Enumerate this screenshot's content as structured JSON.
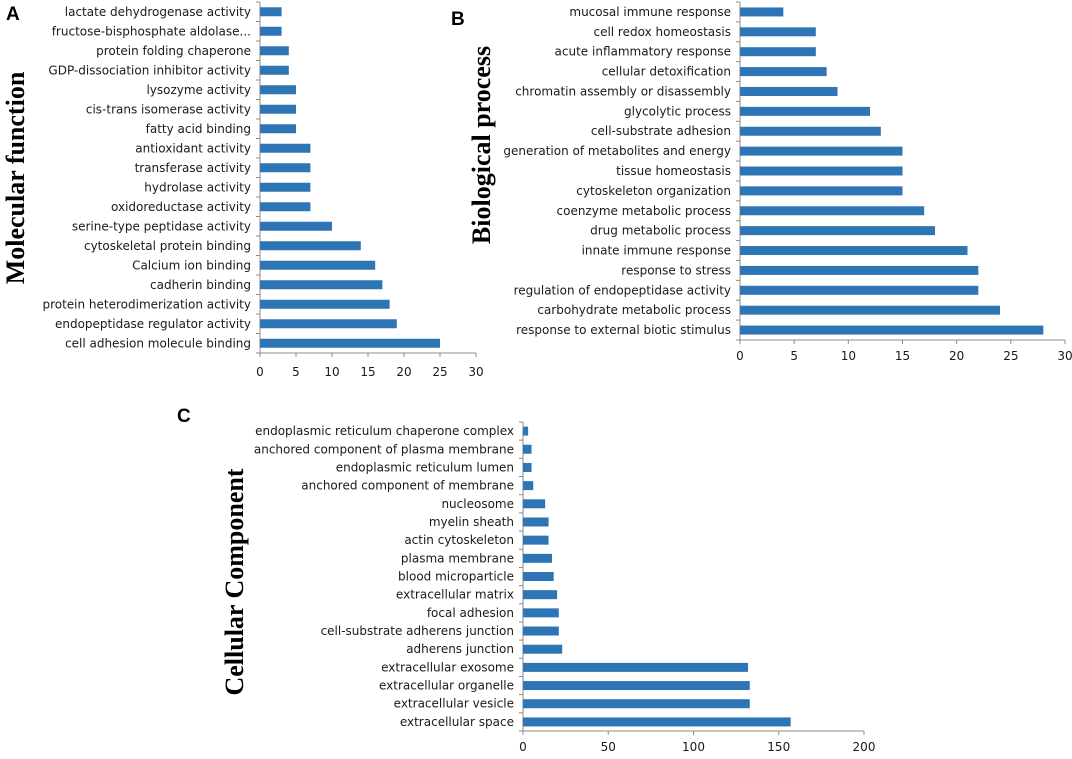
{
  "chart_data": [
    {
      "type": "bar",
      "orientation": "horizontal",
      "panel": "A",
      "ylabel": "Molecular function",
      "xlim": [
        0,
        30
      ],
      "xticks": [
        0,
        5,
        10,
        15,
        20,
        25,
        30
      ],
      "categories": [
        "lactate dehydrogenase activity",
        "fructose-bisphosphate aldolase...",
        "protein folding chaperone",
        "GDP-dissociation inhibitor activity",
        "lysozyme activity",
        "cis-trans isomerase activity",
        "fatty acid binding",
        "antioxidant activity",
        "transferase activity",
        "hydrolase activity",
        "oxidoreductase activity",
        "serine-type peptidase activity",
        "cytoskeletal protein binding",
        "Calcium ion binding",
        "cadherin binding",
        "protein heterodimerization activity",
        "endopeptidase regulator activity",
        "cell adhesion molecule binding"
      ],
      "values": [
        3,
        3,
        4,
        4,
        5,
        5,
        5,
        7,
        7,
        7,
        7,
        10,
        14,
        16,
        17,
        18,
        19,
        25
      ]
    },
    {
      "type": "bar",
      "orientation": "horizontal",
      "panel": "B",
      "ylabel": "Biological  process",
      "xlim": [
        0,
        30
      ],
      "xticks": [
        0,
        5,
        10,
        15,
        20,
        25,
        30
      ],
      "categories": [
        "mucosal immune response",
        "cell redox homeostasis",
        "acute inflammatory response",
        "cellular detoxification",
        "chromatin assembly or disassembly",
        "glycolytic process",
        "cell-substrate adhesion",
        "generation of metabolites and energy",
        "tissue homeostasis",
        "cytoskeleton organization",
        "coenzyme metabolic process",
        "drug metabolic process",
        "innate immune response",
        "response to stress",
        "regulation of endopeptidase activity",
        "carbohydrate metabolic process",
        "response to external biotic stimulus"
      ],
      "values": [
        4,
        7,
        7,
        8,
        9,
        12,
        13,
        15,
        15,
        15,
        17,
        18,
        21,
        22,
        22,
        24,
        28
      ]
    },
    {
      "type": "bar",
      "orientation": "horizontal",
      "panel": "C",
      "ylabel": "Cellular Component",
      "xlim": [
        0,
        200
      ],
      "xticks": [
        0,
        50,
        100,
        150,
        200
      ],
      "categories": [
        "endoplasmic reticulum chaperone complex",
        "anchored component of plasma membrane",
        "endoplasmic reticulum lumen",
        "anchored component of membrane",
        "nucleosome",
        "myelin sheath",
        "actin cytoskeleton",
        "plasma membrane",
        "blood microparticle",
        "extracellular matrix",
        "focal adhesion",
        "cell-substrate adherens junction",
        "adherens junction",
        "extracellular exosome",
        "extracellular organelle",
        "extracellular vesicle",
        "extracellular space"
      ],
      "values": [
        3,
        5,
        5,
        6,
        13,
        15,
        15,
        17,
        18,
        20,
        21,
        21,
        23,
        132,
        133,
        133,
        157
      ]
    }
  ],
  "colors": {
    "bar": "#2e75b6",
    "axis": "#8c8c8c"
  }
}
